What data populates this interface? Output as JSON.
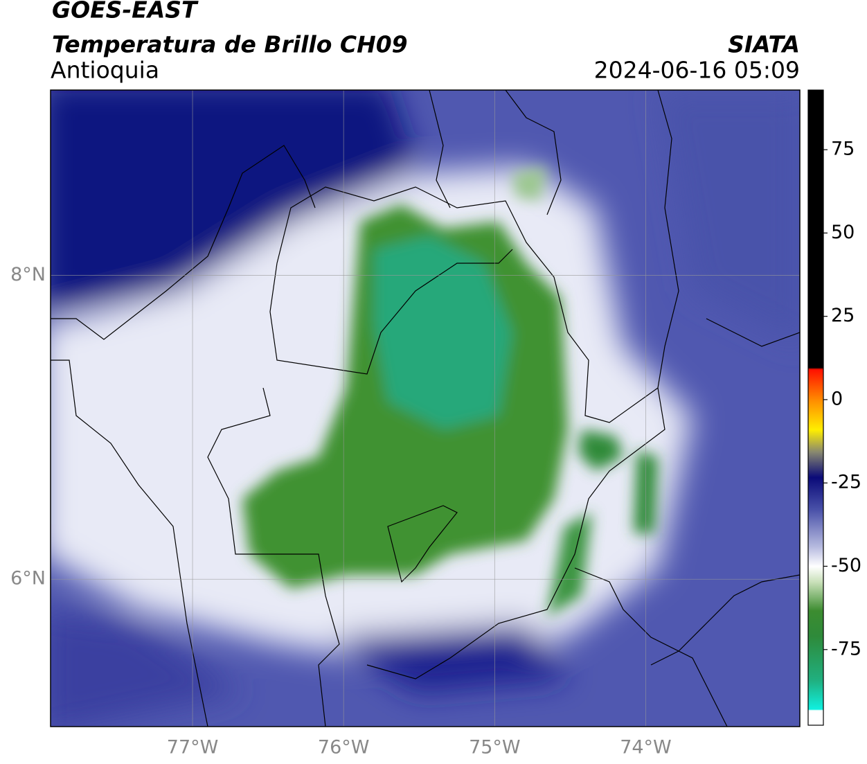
{
  "header": {
    "platform": "GOES-EAST",
    "product": "Temperatura de Brillo CH09",
    "region": "Antioquia",
    "source": "SIATA",
    "datetime": "2024-06-16 05:09"
  },
  "map": {
    "xlim": [
      -77.94,
      -72.98
    ],
    "ylim": [
      5.03,
      9.22
    ],
    "xticks": [
      {
        "value": -77,
        "label": "77°W"
      },
      {
        "value": -76,
        "label": "76°W"
      },
      {
        "value": -75,
        "label": "75°W"
      },
      {
        "value": -74,
        "label": "74°W"
      }
    ],
    "yticks": [
      {
        "value": 6,
        "label": "6°N"
      },
      {
        "value": 8,
        "label": "8°N"
      }
    ],
    "grid": true
  },
  "colorbar": {
    "lim": [
      -97.7,
      92.9
    ],
    "ticks": [
      -75,
      -50,
      -25,
      0,
      25,
      50,
      75
    ]
  }
}
